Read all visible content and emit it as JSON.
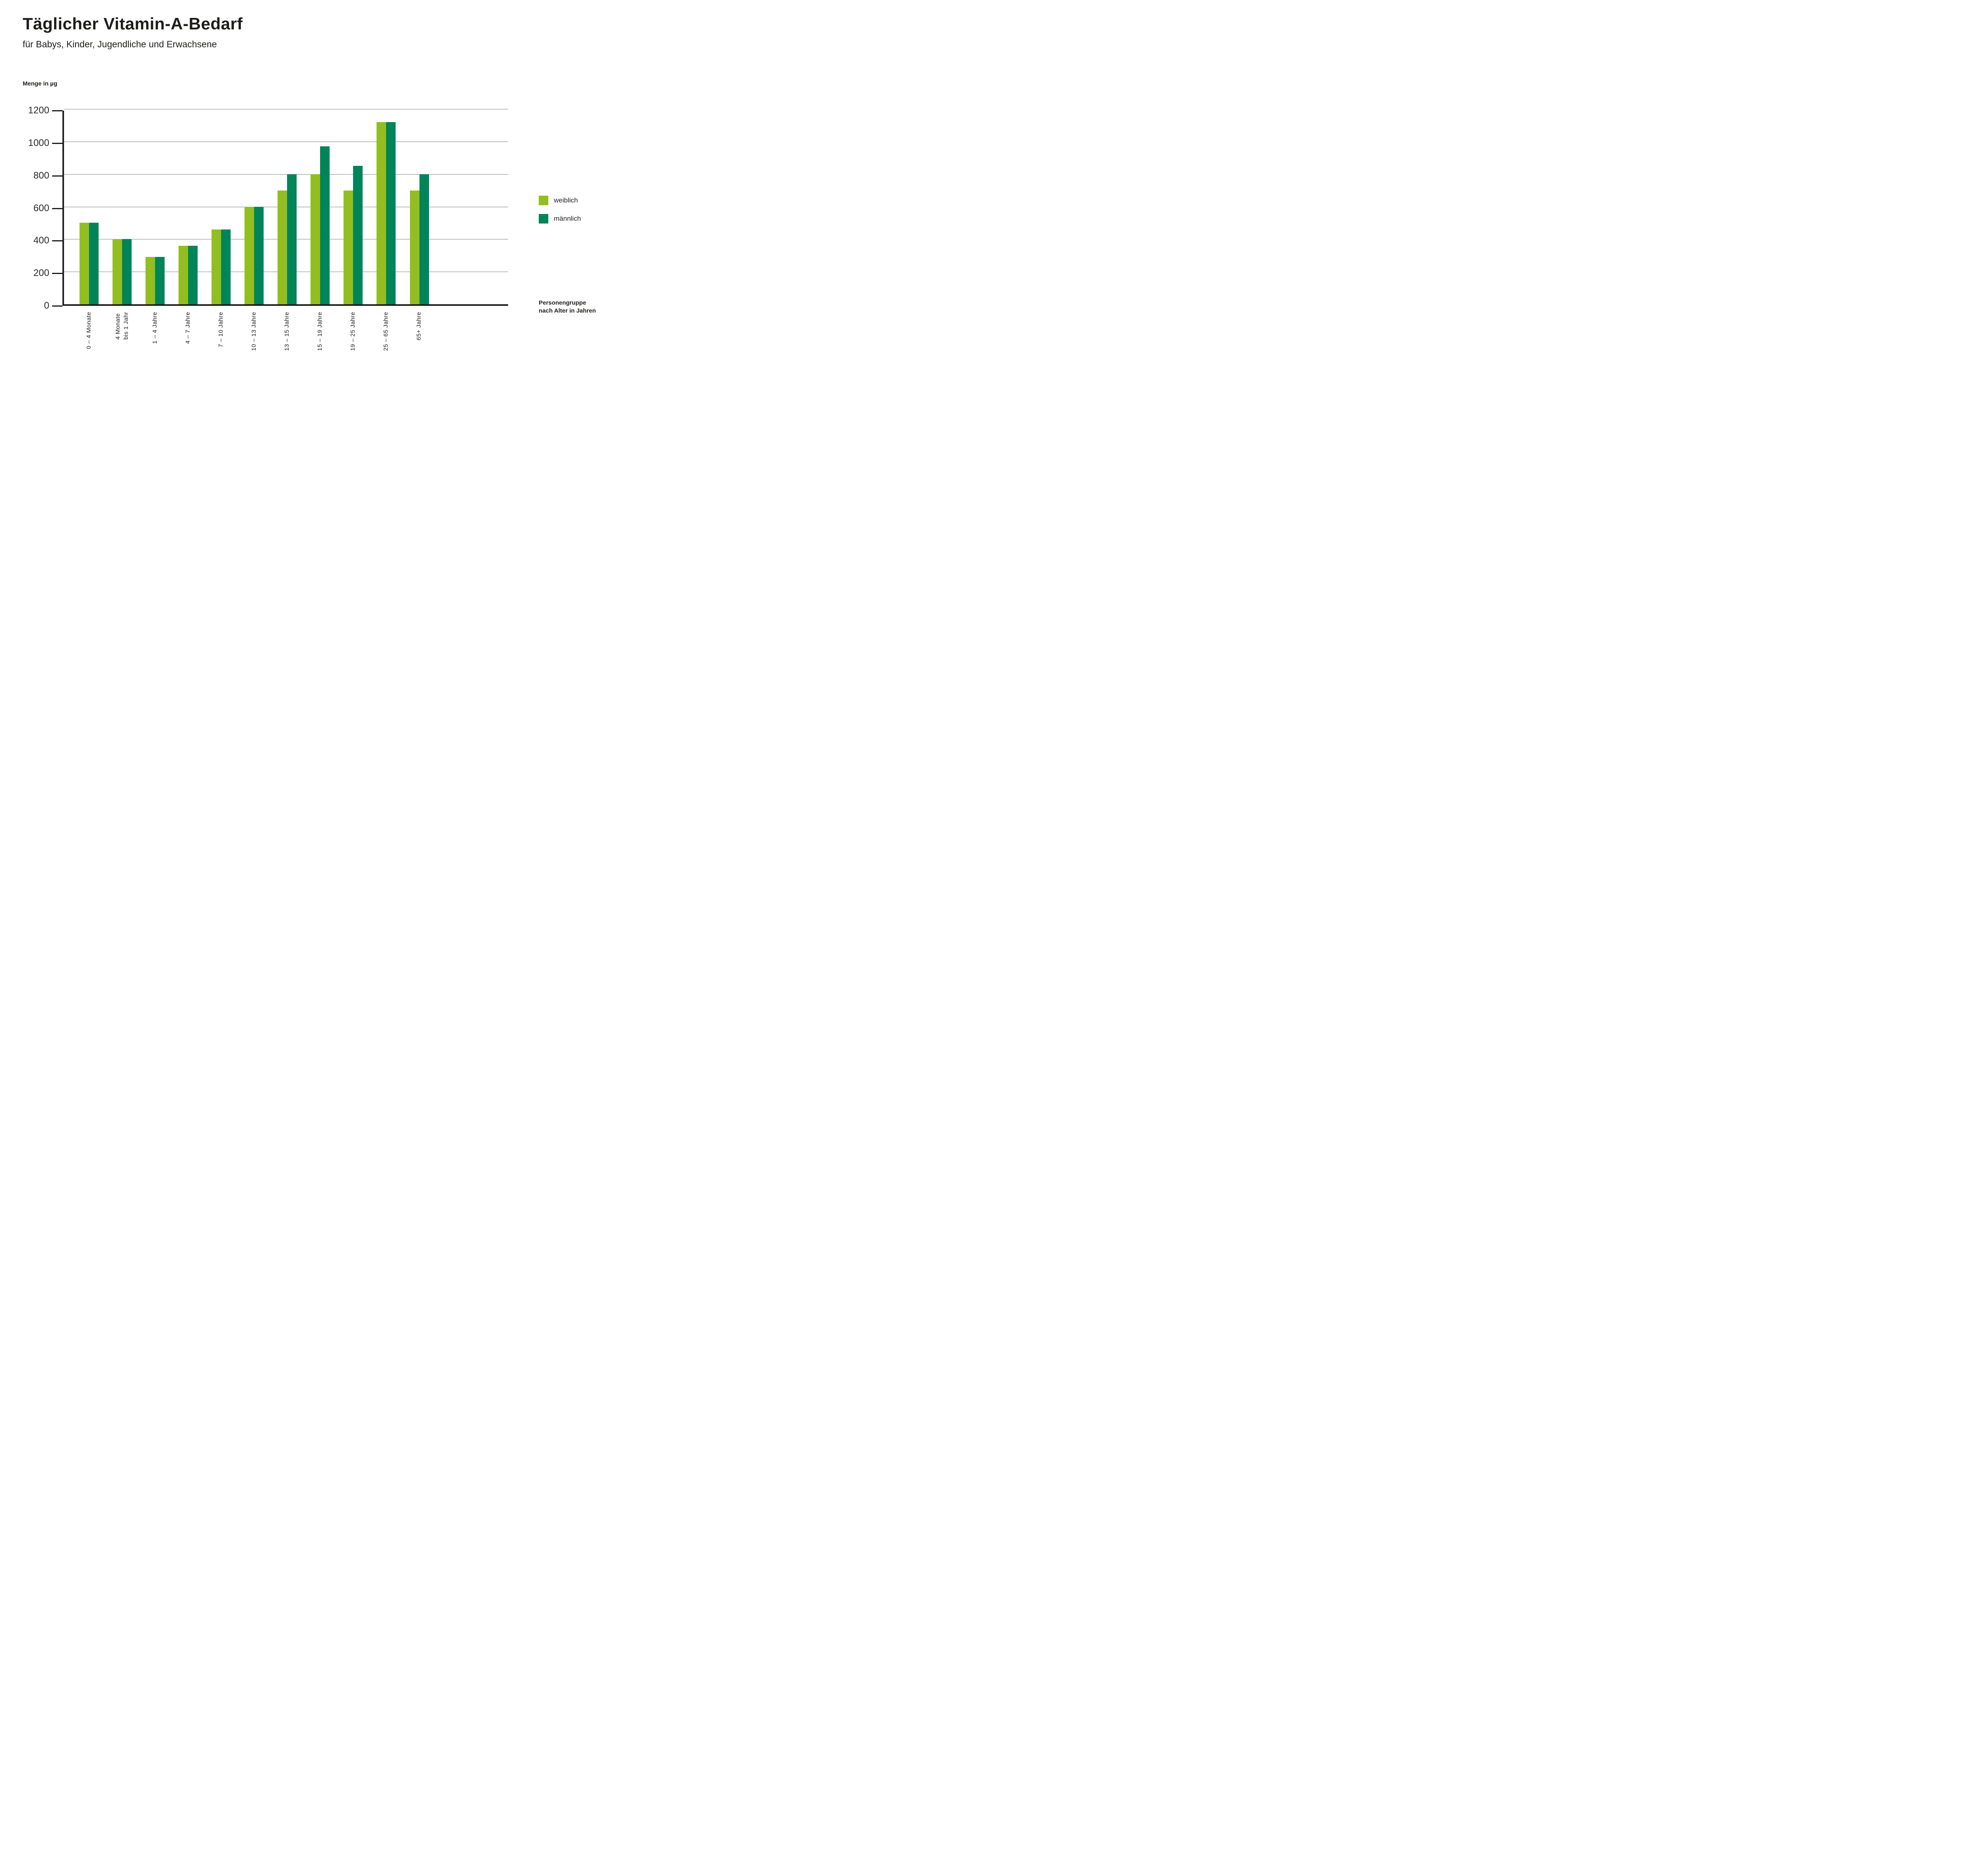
{
  "title": "Täglicher Vitamin-A-Bedarf",
  "subtitle": "für Babys, Kinder, Jugendliche und Erwachsene",
  "y_axis_title": "Menge in µg",
  "x_axis_title": "Personengruppe\nnach Alter in Jahren",
  "colors": {
    "weiblich": "#92BF1F",
    "maennlich": "#008459",
    "gridline": "#7f7f7f",
    "axis": "#1d1d1b",
    "background": "#ffffff"
  },
  "y_ticks": [
    1200,
    1000,
    800,
    600,
    400,
    200,
    0
  ],
  "chart_data": {
    "type": "bar",
    "title": "Täglicher Vitamin-A-Bedarf",
    "subtitle": "für Babys, Kinder, Jugendliche und Erwachsene",
    "ylabel": "Menge in µg",
    "xlabel": "Personengruppe nach Alter in Jahren",
    "ylim": [
      0,
      1200
    ],
    "ytick_interval": 200,
    "grid": true,
    "legend_position": "right",
    "categories": [
      "0 – 4 Monate",
      "4 Monate\nbis 1 Jahr",
      "1 – 4 Jahre",
      "4 – 7 Jahre",
      "7 – 10 Jahre",
      "10 – 13 Jahre",
      "13 – 15 Jahre",
      "15 – 19 Jahre",
      "19 – 25 Jahre",
      "25 – 65 Jahre",
      "65+ Jahre"
    ],
    "series": [
      {
        "name": "weiblich",
        "color": "#92BF1F",
        "values": [
          500,
          400,
          290,
          360,
          460,
          600,
          700,
          800,
          700,
          1120,
          700
        ]
      },
      {
        "name": "männlich",
        "color": "#008459",
        "values": [
          500,
          400,
          290,
          360,
          460,
          600,
          800,
          970,
          850,
          1120,
          800
        ]
      }
    ]
  }
}
